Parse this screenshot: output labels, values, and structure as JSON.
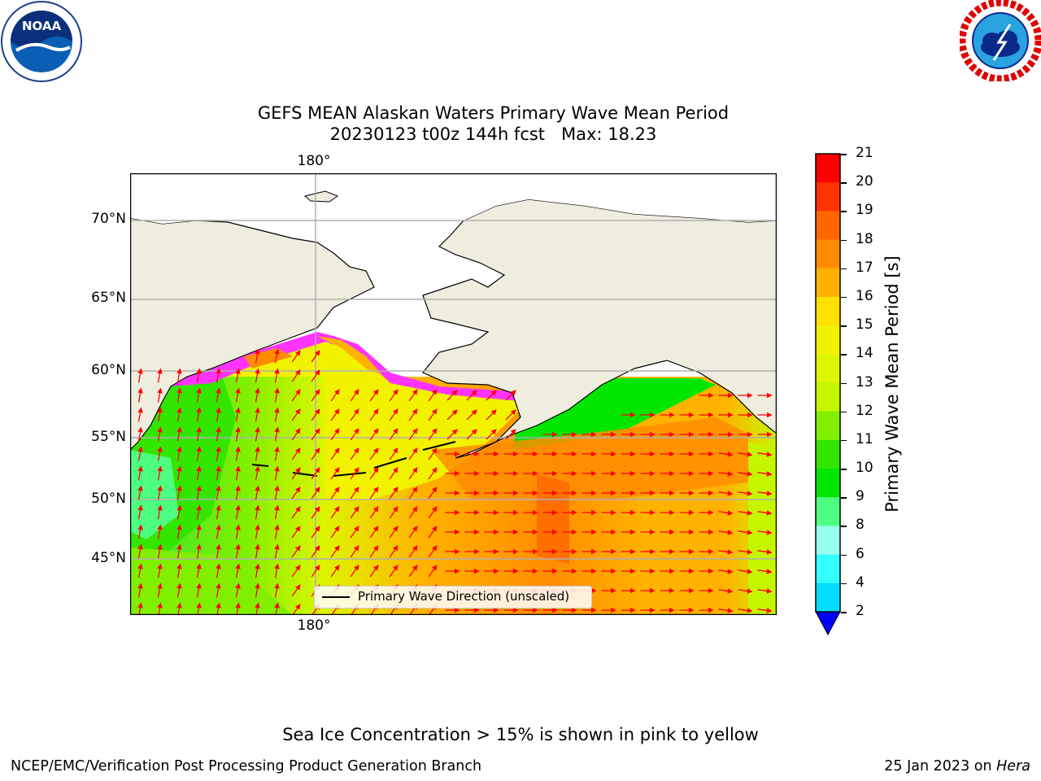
{
  "header": {
    "title_line1": "GEFS MEAN Alaskan Waters Primary Wave Mean Period",
    "title_line2": "20230123 t00z 144h fcst   Max: 18.23"
  },
  "logos": {
    "left": {
      "name": "NOAA",
      "ring_text": "NATIONAL OCEANIC AND ATMOSPHERIC ADMINISTRATION · U.S. DEPARTMENT OF COMMERCE"
    },
    "right": {
      "name": "NATIONAL WEATHER SERVICE"
    }
  },
  "map": {
    "lat_labels": [
      "70°N",
      "65°N",
      "60°N",
      "55°N",
      "50°N",
      "45°N"
    ],
    "lon_label_top": "180°",
    "lon_label_bottom": "180°",
    "legend_label": "Primary Wave Direction (unscaled)",
    "colors": {
      "land": "#efedde",
      "ice": "#ff33ff",
      "arrow": "#ff0000",
      "grid": "#b0b0b0"
    }
  },
  "colorbar": {
    "label": "Primary Wave Mean Period [s]",
    "ticks": [
      "21",
      "20",
      "19",
      "18",
      "17",
      "16",
      "15",
      "14",
      "13",
      "12",
      "11",
      "10",
      "9",
      "8",
      "6",
      "4",
      "2"
    ],
    "colors": [
      "#ff0000",
      "#ff3300",
      "#ff6600",
      "#ff8c00",
      "#ffb300",
      "#ffe100",
      "#f2f200",
      "#ddf500",
      "#c6f500",
      "#80f000",
      "#33e600",
      "#00e600",
      "#4dff80",
      "#99ffee",
      "#33ffff",
      "#00ddff",
      "#0066ff"
    ],
    "extend_color": "#0000ff"
  },
  "footer": {
    "note": "Sea Ice Concentration > 15% is shown in pink to yellow",
    "left": "NCEP/EMC/Verification Post Processing Product Generation Branch",
    "right_prefix": "25 Jan 2023 on ",
    "right_italic": "Hera"
  }
}
